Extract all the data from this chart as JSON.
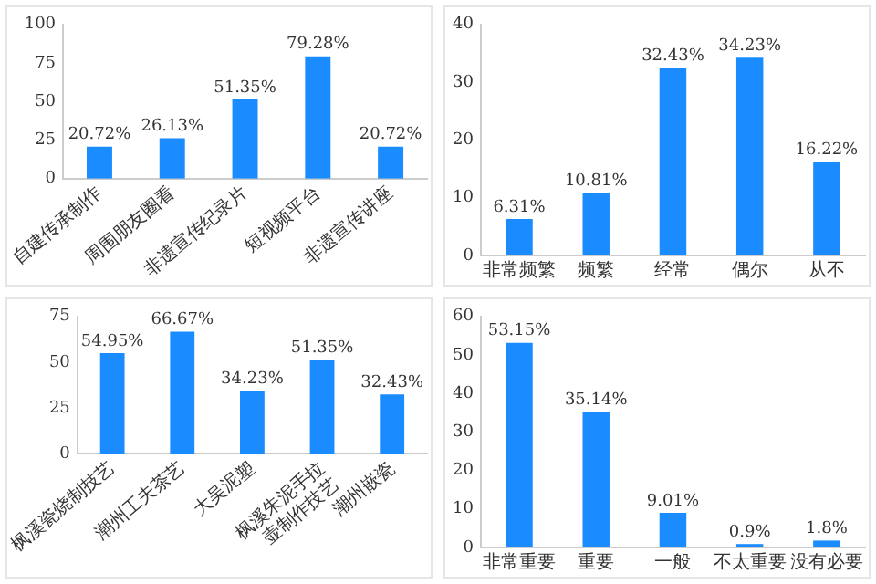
{
  "chart_data": [
    {
      "type": "bar",
      "categories": [
        "自建传承制作",
        "周围朋友圈看",
        "非遗宣传纪录片",
        "短视频平台",
        "非遗宣传讲座"
      ],
      "values": [
        20.72,
        26.13,
        51.35,
        79.28,
        20.72
      ],
      "value_labels": [
        "20.72%",
        "26.13%",
        "51.35%",
        "79.28%",
        "20.72%"
      ],
      "color": "#1a8cff",
      "ylim": [
        0,
        100
      ],
      "yticks": [
        0,
        25,
        50,
        75,
        100
      ],
      "grid": false,
      "legend": false
    },
    {
      "type": "bar",
      "categories": [
        "非常频繁",
        "频繁",
        "经常",
        "偶尔",
        "从不"
      ],
      "values": [
        6.31,
        10.81,
        32.43,
        34.23,
        16.22
      ],
      "value_labels": [
        "6.31%",
        "10.81%",
        "32.43%",
        "34.23%",
        "16.22%"
      ],
      "color": "#1a8cff",
      "ylim": [
        0,
        40
      ],
      "yticks": [
        0,
        10,
        20,
        30,
        40
      ],
      "grid": false,
      "legend": false
    },
    {
      "type": "bar",
      "categories": [
        "枫溪瓷烧制技艺",
        "潮州工夫茶艺",
        "大吴泥塑",
        "枫溪朱泥手拉壶制作技艺",
        "潮州嵌瓷"
      ],
      "values": [
        54.95,
        66.67,
        34.23,
        51.35,
        32.43
      ],
      "value_labels": [
        "54.95%",
        "66.67%",
        "34.23%",
        "51.35%",
        "32.43%"
      ],
      "color": "#1a8cff",
      "ylim": [
        0,
        75
      ],
      "yticks": [
        0,
        25,
        50,
        75
      ],
      "grid": false,
      "legend": false
    },
    {
      "type": "bar",
      "categories": [
        "非常重要",
        "重要",
        "一般",
        "不太重要",
        "没有必要"
      ],
      "values": [
        53.15,
        35.14,
        9.01,
        0.9,
        1.8
      ],
      "value_labels": [
        "53.15%",
        "35.14%",
        "9.01%",
        "0.9%",
        "1.8%"
      ],
      "color": "#1a8cff",
      "ylim": [
        0,
        60
      ],
      "yticks": [
        0,
        10,
        20,
        30,
        40,
        50,
        60
      ],
      "grid": false,
      "legend": false
    }
  ]
}
